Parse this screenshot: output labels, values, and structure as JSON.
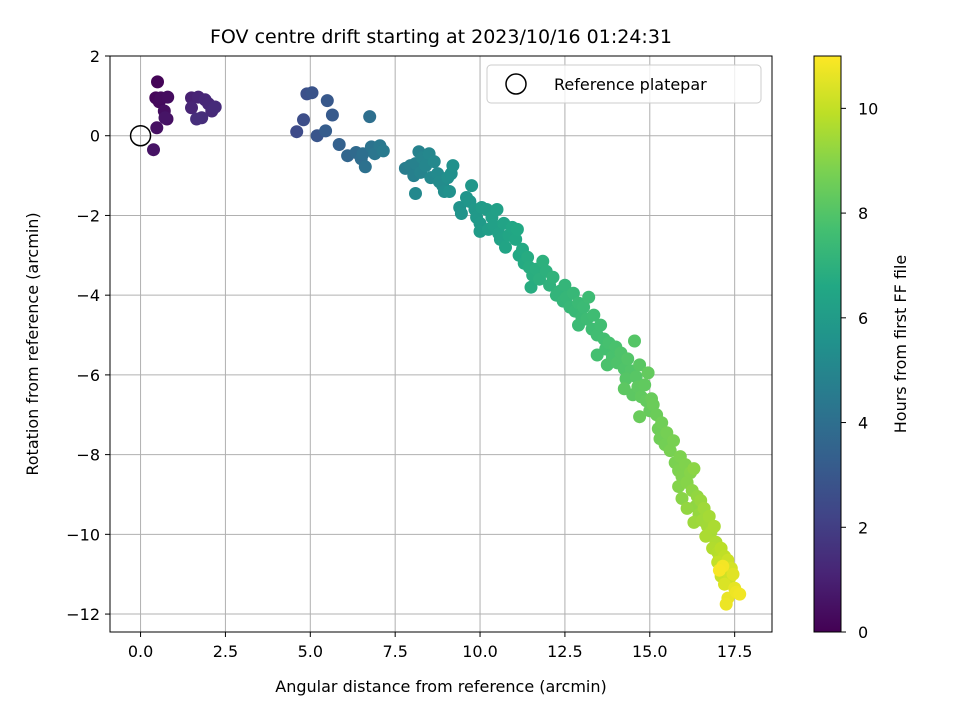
{
  "chart_data": {
    "type": "scatter",
    "title": "FOV centre drift starting at 2023/10/16 01:24:31",
    "xlabel": "Angular distance from reference (arcmin)",
    "ylabel": "Rotation from reference (arcmin)",
    "xlim": [
      -0.9,
      18.6
    ],
    "ylim": [
      -12.45,
      2.0
    ],
    "xticks": [
      0.0,
      2.5,
      5.0,
      7.5,
      10.0,
      12.5,
      15.0,
      17.5
    ],
    "xtick_labels": [
      "0.0",
      "2.5",
      "5.0",
      "7.5",
      "10.0",
      "12.5",
      "15.0",
      "17.5"
    ],
    "yticks": [
      2,
      0,
      -2,
      -4,
      -6,
      -8,
      -10,
      -12
    ],
    "ytick_labels": [
      "2",
      "0",
      "−2",
      "−4",
      "−6",
      "−8",
      "−10",
      "−12"
    ],
    "grid": true,
    "legend": {
      "position": "top-right",
      "entries": [
        "Reference platepar"
      ]
    },
    "reference_point": {
      "x": 0.0,
      "y": 0.0,
      "label": "Reference platepar"
    },
    "colorbar": {
      "label": "Hours from first FF file",
      "min": 0,
      "max": 11,
      "ticks": [
        0,
        2,
        4,
        6,
        8,
        10
      ],
      "colormap": "viridis"
    },
    "series": [
      {
        "fields": [
          "x",
          "y",
          "hours"
        ],
        "points": [
          [
            0.5,
            1.35,
            0.1
          ],
          [
            0.45,
            0.95,
            0.2
          ],
          [
            0.55,
            0.85,
            0.25
          ],
          [
            0.6,
            0.95,
            0.3
          ],
          [
            0.8,
            0.97,
            0.35
          ],
          [
            0.7,
            0.62,
            0.4
          ],
          [
            0.78,
            0.42,
            0.45
          ],
          [
            0.48,
            0.2,
            0.5
          ],
          [
            0.38,
            -0.35,
            0.55
          ],
          [
            0.72,
            0.45,
            0.6
          ],
          [
            1.5,
            0.95,
            1.0
          ],
          [
            1.7,
            0.97,
            1.1
          ],
          [
            1.5,
            0.7,
            1.15
          ],
          [
            1.9,
            0.9,
            1.2
          ],
          [
            2.0,
            0.8,
            1.25
          ],
          [
            2.1,
            0.62,
            1.3
          ],
          [
            2.2,
            0.72,
            1.35
          ],
          [
            1.8,
            0.45,
            1.4
          ],
          [
            1.65,
            0.42,
            1.45
          ],
          [
            4.6,
            0.1,
            2.5
          ],
          [
            4.8,
            0.4,
            2.6
          ],
          [
            4.9,
            1.05,
            2.7
          ],
          [
            5.05,
            1.08,
            2.8
          ],
          [
            5.2,
            0.0,
            2.9
          ],
          [
            5.5,
            0.88,
            3.0
          ],
          [
            5.65,
            0.52,
            3.1
          ],
          [
            5.45,
            0.12,
            3.2
          ],
          [
            5.85,
            -0.22,
            3.4
          ],
          [
            6.1,
            -0.5,
            3.6
          ],
          [
            6.35,
            -0.42,
            3.8
          ],
          [
            6.5,
            -0.58,
            3.9
          ],
          [
            6.55,
            -0.45,
            4.0
          ],
          [
            6.62,
            -0.78,
            4.1
          ],
          [
            6.75,
            0.48,
            4.0
          ],
          [
            6.8,
            -0.28,
            4.2
          ],
          [
            6.9,
            -0.45,
            4.3
          ],
          [
            7.05,
            -0.25,
            4.4
          ],
          [
            7.15,
            -0.38,
            4.5
          ],
          [
            7.8,
            -0.82,
            4.6
          ],
          [
            7.95,
            -0.75,
            4.7
          ],
          [
            8.05,
            -1.0,
            4.75
          ],
          [
            8.1,
            -0.7,
            4.8
          ],
          [
            8.2,
            -0.4,
            4.85
          ],
          [
            8.25,
            -0.92,
            4.9
          ],
          [
            8.3,
            -0.55,
            4.95
          ],
          [
            8.4,
            -0.75,
            5.0
          ],
          [
            8.5,
            -0.45,
            5.05
          ],
          [
            8.1,
            -1.45,
            5.1
          ],
          [
            8.55,
            -1.05,
            5.1
          ],
          [
            8.65,
            -0.65,
            5.15
          ],
          [
            8.75,
            -0.95,
            5.2
          ],
          [
            8.8,
            -1.15,
            5.25
          ],
          [
            8.9,
            -1.25,
            5.3
          ],
          [
            8.95,
            -1.4,
            5.35
          ],
          [
            9.05,
            -1.05,
            5.4
          ],
          [
            9.15,
            -0.95,
            5.45
          ],
          [
            9.1,
            -1.4,
            5.5
          ],
          [
            9.2,
            -0.75,
            5.5
          ],
          [
            9.4,
            -1.8,
            5.6
          ],
          [
            9.45,
            -1.95,
            5.65
          ],
          [
            9.6,
            -1.55,
            5.7
          ],
          [
            9.7,
            -1.65,
            5.75
          ],
          [
            9.75,
            -1.25,
            5.8
          ],
          [
            9.85,
            -1.85,
            5.85
          ],
          [
            9.9,
            -2.05,
            5.9
          ],
          [
            10.0,
            -2.2,
            5.95
          ],
          [
            10.0,
            -2.4,
            6.0
          ],
          [
            10.05,
            -1.8,
            6.0
          ],
          [
            10.2,
            -1.85,
            6.05
          ],
          [
            10.25,
            -2.35,
            6.1
          ],
          [
            10.35,
            -2.05,
            6.15
          ],
          [
            10.4,
            -2.25,
            6.2
          ],
          [
            10.5,
            -1.85,
            6.2
          ],
          [
            10.55,
            -2.45,
            6.25
          ],
          [
            10.6,
            -2.6,
            6.3
          ],
          [
            10.7,
            -2.2,
            6.35
          ],
          [
            10.75,
            -2.8,
            6.4
          ],
          [
            10.85,
            -2.5,
            6.45
          ],
          [
            10.95,
            -2.3,
            6.5
          ],
          [
            11.05,
            -2.6,
            6.55
          ],
          [
            11.1,
            -2.35,
            6.6
          ],
          [
            11.15,
            -3.0,
            6.6
          ],
          [
            11.25,
            -2.85,
            6.65
          ],
          [
            11.3,
            -3.2,
            6.7
          ],
          [
            11.4,
            -3.05,
            6.75
          ],
          [
            11.45,
            -3.3,
            6.8
          ],
          [
            11.5,
            -3.8,
            6.8
          ],
          [
            11.55,
            -3.5,
            6.85
          ],
          [
            11.65,
            -3.35,
            6.9
          ],
          [
            11.75,
            -3.6,
            6.95
          ],
          [
            11.85,
            -3.15,
            7.0
          ],
          [
            11.95,
            -3.4,
            7.0
          ],
          [
            12.05,
            -3.75,
            7.05
          ],
          [
            12.15,
            -3.55,
            7.1
          ],
          [
            12.25,
            -4.0,
            7.15
          ],
          [
            12.35,
            -3.9,
            7.15
          ],
          [
            12.45,
            -4.15,
            7.2
          ],
          [
            12.5,
            -3.75,
            7.2
          ],
          [
            12.55,
            -4.05,
            7.25
          ],
          [
            12.65,
            -4.3,
            7.3
          ],
          [
            12.75,
            -3.95,
            7.3
          ],
          [
            12.8,
            -4.4,
            7.35
          ],
          [
            12.9,
            -4.2,
            7.4
          ],
          [
            13.0,
            -4.55,
            7.4
          ],
          [
            13.05,
            -4.3,
            7.45
          ],
          [
            12.9,
            -4.75,
            7.45
          ],
          [
            13.15,
            -4.6,
            7.5
          ],
          [
            13.2,
            -4.05,
            7.5
          ],
          [
            13.3,
            -4.85,
            7.55
          ],
          [
            13.35,
            -4.5,
            7.55
          ],
          [
            13.45,
            -5.0,
            7.6
          ],
          [
            13.55,
            -4.75,
            7.6
          ],
          [
            13.65,
            -5.1,
            7.65
          ],
          [
            13.45,
            -5.5,
            7.7
          ],
          [
            13.7,
            -5.35,
            7.7
          ],
          [
            13.8,
            -5.2,
            7.75
          ],
          [
            13.9,
            -5.55,
            7.8
          ],
          [
            14.0,
            -5.3,
            7.8
          ],
          [
            13.75,
            -5.75,
            7.85
          ],
          [
            14.05,
            -5.7,
            7.9
          ],
          [
            14.15,
            -5.45,
            7.9
          ],
          [
            14.25,
            -5.85,
            7.95
          ],
          [
            14.35,
            -5.6,
            8.0
          ],
          [
            14.45,
            -5.9,
            8.0
          ],
          [
            14.3,
            -6.1,
            8.05
          ],
          [
            14.55,
            -5.15,
            8.05
          ],
          [
            14.6,
            -6.05,
            8.1
          ],
          [
            14.7,
            -5.75,
            8.15
          ],
          [
            14.25,
            -6.35,
            8.2
          ],
          [
            14.5,
            -6.5,
            8.2
          ],
          [
            14.65,
            -6.3,
            8.25
          ],
          [
            14.75,
            -6.55,
            8.3
          ],
          [
            14.85,
            -6.25,
            8.3
          ],
          [
            14.9,
            -6.65,
            8.35
          ],
          [
            14.95,
            -5.95,
            8.35
          ],
          [
            15.0,
            -6.9,
            8.4
          ],
          [
            14.7,
            -7.05,
            8.45
          ],
          [
            15.05,
            -6.6,
            8.45
          ],
          [
            15.1,
            -6.75,
            8.5
          ],
          [
            15.2,
            -7.0,
            8.5
          ],
          [
            15.25,
            -7.35,
            8.55
          ],
          [
            15.3,
            -7.6,
            8.6
          ],
          [
            15.35,
            -7.2,
            8.6
          ],
          [
            15.45,
            -7.75,
            8.65
          ],
          [
            15.5,
            -7.45,
            8.7
          ],
          [
            15.6,
            -7.9,
            8.75
          ],
          [
            15.7,
            -7.65,
            8.75
          ],
          [
            15.75,
            -8.2,
            8.8
          ],
          [
            15.85,
            -8.4,
            8.85
          ],
          [
            15.9,
            -8.05,
            8.85
          ],
          [
            15.95,
            -8.55,
            8.9
          ],
          [
            16.05,
            -8.25,
            8.9
          ],
          [
            15.85,
            -8.8,
            8.95
          ],
          [
            16.1,
            -8.7,
            9.0
          ],
          [
            16.2,
            -8.45,
            9.0
          ],
          [
            15.95,
            -9.1,
            9.05
          ],
          [
            16.25,
            -8.9,
            9.1
          ],
          [
            16.3,
            -8.35,
            9.1
          ],
          [
            16.35,
            -9.3,
            9.15
          ],
          [
            16.1,
            -9.35,
            9.2
          ],
          [
            16.4,
            -9.05,
            9.2
          ],
          [
            16.45,
            -9.5,
            9.25
          ],
          [
            16.5,
            -9.15,
            9.3
          ],
          [
            16.3,
            -9.7,
            9.35
          ],
          [
            16.55,
            -9.65,
            9.4
          ],
          [
            16.6,
            -9.35,
            9.4
          ],
          [
            16.7,
            -9.8,
            9.45
          ],
          [
            16.75,
            -9.55,
            9.5
          ],
          [
            16.8,
            -9.95,
            9.55
          ],
          [
            16.9,
            -9.8,
            9.6
          ],
          [
            16.65,
            -10.05,
            9.6
          ],
          [
            16.95,
            -10.2,
            9.65
          ],
          [
            16.85,
            -10.35,
            9.7
          ],
          [
            17.0,
            -10.45,
            9.75
          ],
          [
            17.05,
            -10.6,
            9.8
          ],
          [
            17.1,
            -10.35,
            9.85
          ],
          [
            17.15,
            -10.75,
            9.9
          ],
          [
            17.2,
            -10.55,
            9.95
          ],
          [
            17.0,
            -10.7,
            10.0
          ],
          [
            17.25,
            -10.9,
            10.05
          ],
          [
            17.1,
            -11.05,
            10.1
          ],
          [
            17.3,
            -10.65,
            10.15
          ],
          [
            17.35,
            -11.1,
            10.2
          ],
          [
            17.4,
            -10.85,
            10.3
          ],
          [
            17.2,
            -11.25,
            10.4
          ],
          [
            17.45,
            -11.0,
            10.5
          ],
          [
            17.5,
            -11.35,
            10.6
          ],
          [
            17.3,
            -11.6,
            10.65
          ],
          [
            17.25,
            -11.75,
            10.7
          ],
          [
            17.55,
            -11.45,
            10.75
          ],
          [
            17.65,
            -11.5,
            10.8
          ],
          [
            17.15,
            -10.8,
            10.85
          ],
          [
            17.05,
            -10.9,
            10.9
          ]
        ]
      }
    ]
  }
}
